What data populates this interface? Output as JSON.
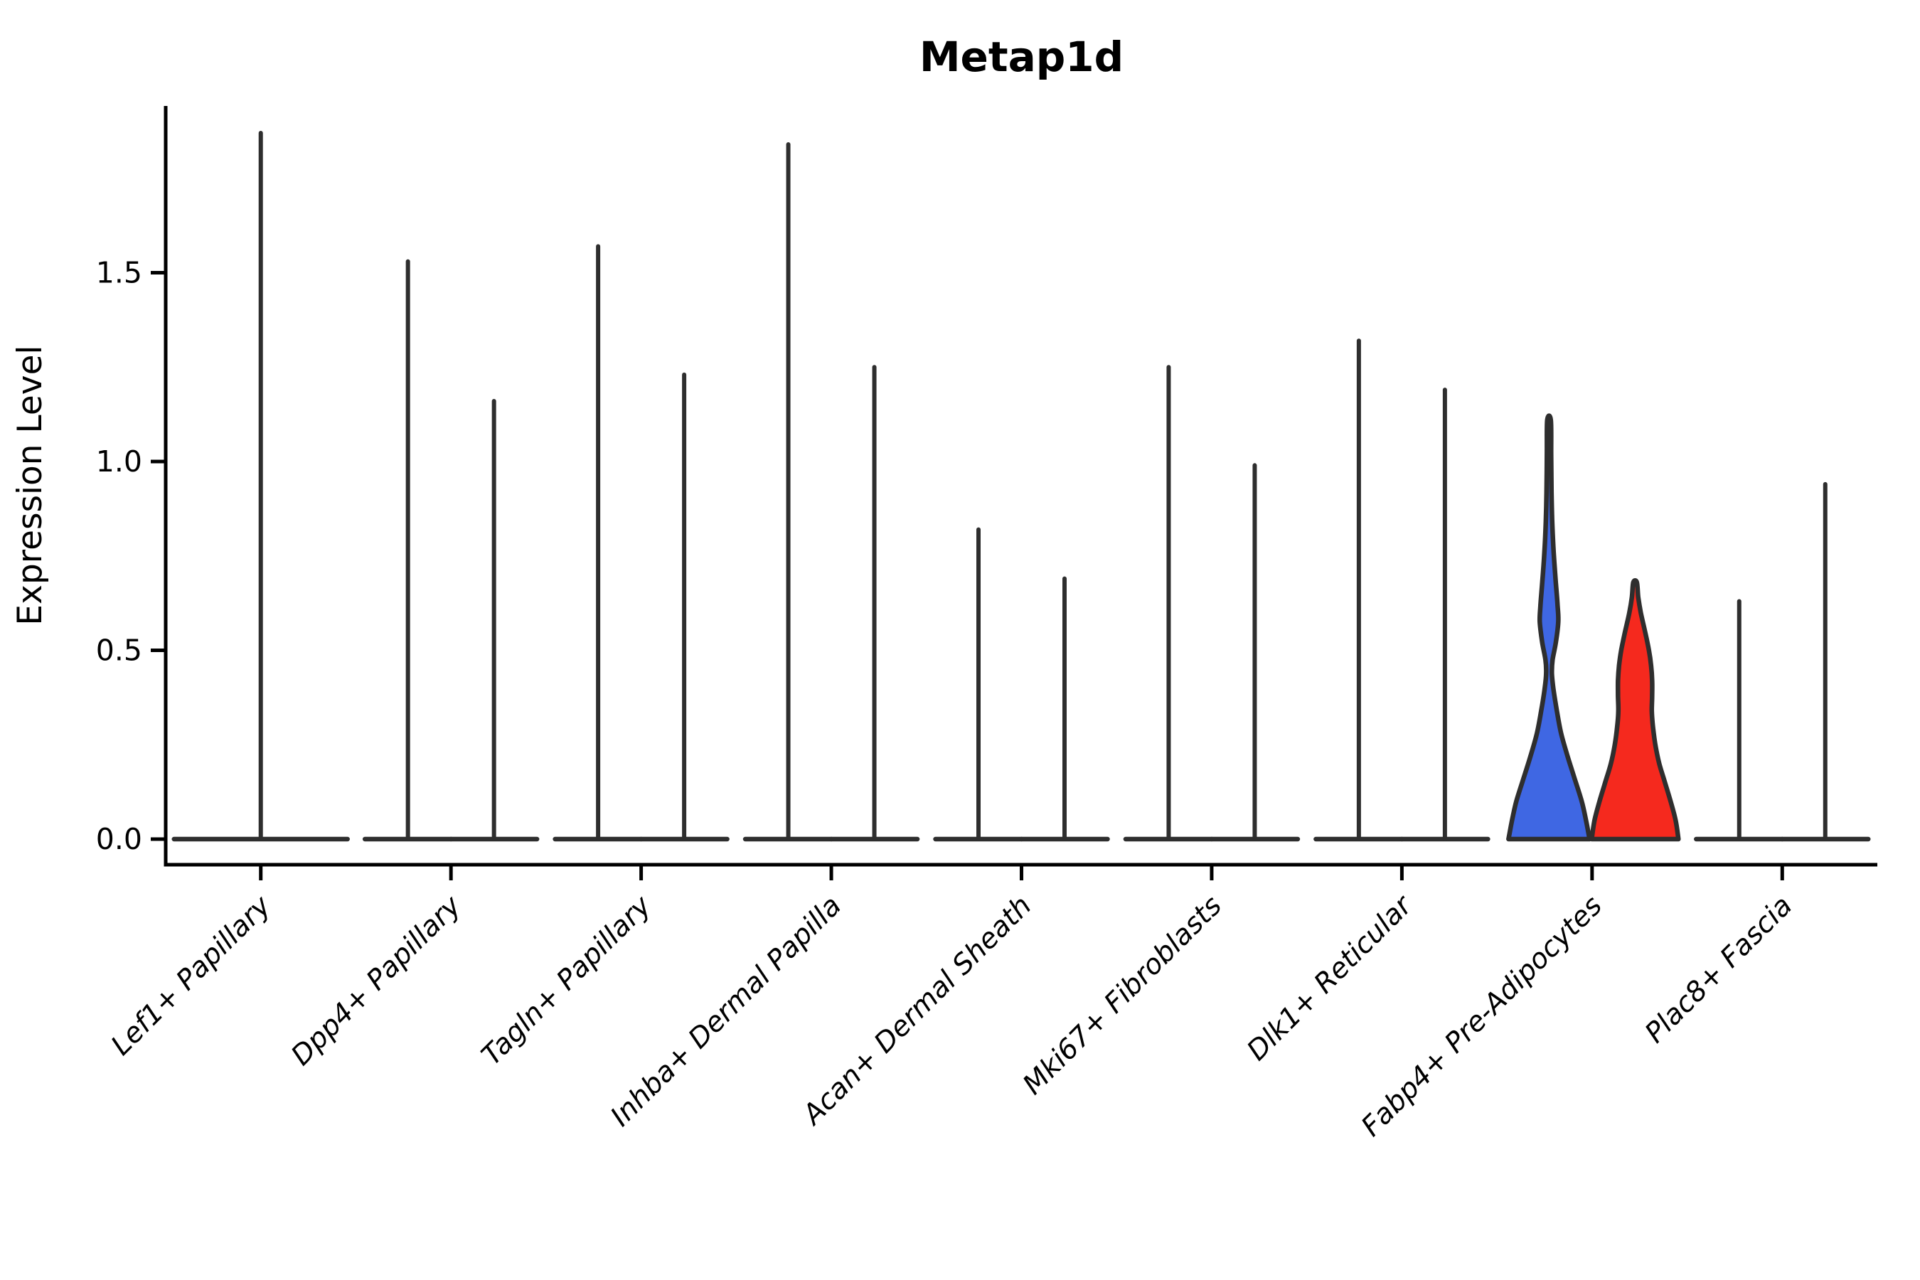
{
  "chart_data": {
    "type": "violin",
    "title": "Metap1d",
    "y_axis": {
      "label": "Expression Level",
      "tick_labels": [
        "0.0",
        "0.5",
        "1.0",
        "1.5"
      ],
      "tick_values": [
        0.0,
        0.5,
        1.0,
        1.5
      ],
      "range": [
        -0.07,
        1.94
      ],
      "grid": "off"
    },
    "x_axis": {
      "tick_labels_rotation_deg": 45,
      "tick_labels_style": "italic"
    },
    "legend": "none",
    "colors": {
      "group1_fill": "#3F67E3",
      "group2_fill": "#F5291E",
      "outline": "#2e2e2e",
      "axis": "#000000",
      "text": "#000000"
    },
    "categories": [
      {
        "label": "Lef1+ Papillary",
        "violins": [
          {
            "pos": "center",
            "span": "full",
            "shape": "spike",
            "max": 1.87,
            "fill": null
          }
        ]
      },
      {
        "label": "Dpp4+ Papillary",
        "violins": [
          {
            "pos": "left",
            "shape": "spike",
            "max": 1.53,
            "fill": null
          },
          {
            "pos": "right",
            "shape": "spike",
            "max": 1.16,
            "fill": null
          }
        ]
      },
      {
        "label": "Tagln+ Papillary",
        "violins": [
          {
            "pos": "left",
            "shape": "spike",
            "max": 1.57,
            "fill": null
          },
          {
            "pos": "right",
            "shape": "spike",
            "max": 1.23,
            "fill": null
          }
        ]
      },
      {
        "label": "Inhba+ Dermal Papilla",
        "violins": [
          {
            "pos": "left",
            "shape": "spike",
            "max": 1.84,
            "fill": null
          },
          {
            "pos": "right",
            "shape": "spike",
            "max": 1.25,
            "fill": null
          }
        ]
      },
      {
        "label": "Acan+ Dermal Sheath",
        "violins": [
          {
            "pos": "left",
            "shape": "spike",
            "max": 0.82,
            "fill": null
          },
          {
            "pos": "right",
            "shape": "spike",
            "max": 0.69,
            "fill": null
          }
        ]
      },
      {
        "label": "Mki67+ Fibroblasts",
        "violins": [
          {
            "pos": "left",
            "shape": "spike",
            "max": 1.25,
            "fill": null
          },
          {
            "pos": "right",
            "shape": "spike",
            "max": 0.99,
            "fill": null
          }
        ]
      },
      {
        "label": "Dlk1+ Reticular",
        "violins": [
          {
            "pos": "left",
            "shape": "spike",
            "max": 1.32,
            "fill": null
          },
          {
            "pos": "right",
            "shape": "spike",
            "max": 1.19,
            "fill": null
          }
        ]
      },
      {
        "label": "Fabp4+ Pre-Adipocytes",
        "violins": [
          {
            "pos": "left",
            "shape": "profile",
            "max": 1.11,
            "fill": "group1_fill",
            "profile": [
              [
                1.11,
                2.5
              ],
              [
                1.02,
                3
              ],
              [
                0.92,
                3.5
              ],
              [
                0.84,
                4.5
              ],
              [
                0.76,
                6.5
              ],
              [
                0.68,
                9.5
              ],
              [
                0.62,
                12
              ],
              [
                0.575,
                13
              ],
              [
                0.52,
                9.5
              ],
              [
                0.475,
                5
              ],
              [
                0.44,
                4
              ],
              [
                0.4,
                6
              ],
              [
                0.34,
                11
              ],
              [
                0.28,
                17
              ],
              [
                0.22,
                26
              ],
              [
                0.16,
                36
              ],
              [
                0.1,
                46
              ],
              [
                0.05,
                52
              ],
              [
                0.0,
                57
              ]
            ]
          },
          {
            "pos": "right",
            "shape": "profile",
            "max": 0.68,
            "fill": "group2_fill",
            "profile": [
              [
                0.68,
                2.5
              ],
              [
                0.64,
                4.5
              ],
              [
                0.6,
                8
              ],
              [
                0.55,
                14
              ],
              [
                0.5,
                19.5
              ],
              [
                0.46,
                22.5
              ],
              [
                0.42,
                24
              ],
              [
                0.38,
                24
              ],
              [
                0.34,
                23.5
              ],
              [
                0.3,
                25
              ],
              [
                0.25,
                28.5
              ],
              [
                0.2,
                34
              ],
              [
                0.15,
                42
              ],
              [
                0.1,
                50
              ],
              [
                0.05,
                57
              ],
              [
                0.0,
                61
              ]
            ]
          }
        ]
      },
      {
        "label": "Plac8+ Fascia",
        "violins": [
          {
            "pos": "left",
            "shape": "spike",
            "max": 0.63,
            "fill": null
          },
          {
            "pos": "right",
            "shape": "spike",
            "max": 0.94,
            "fill": null
          }
        ]
      }
    ]
  }
}
